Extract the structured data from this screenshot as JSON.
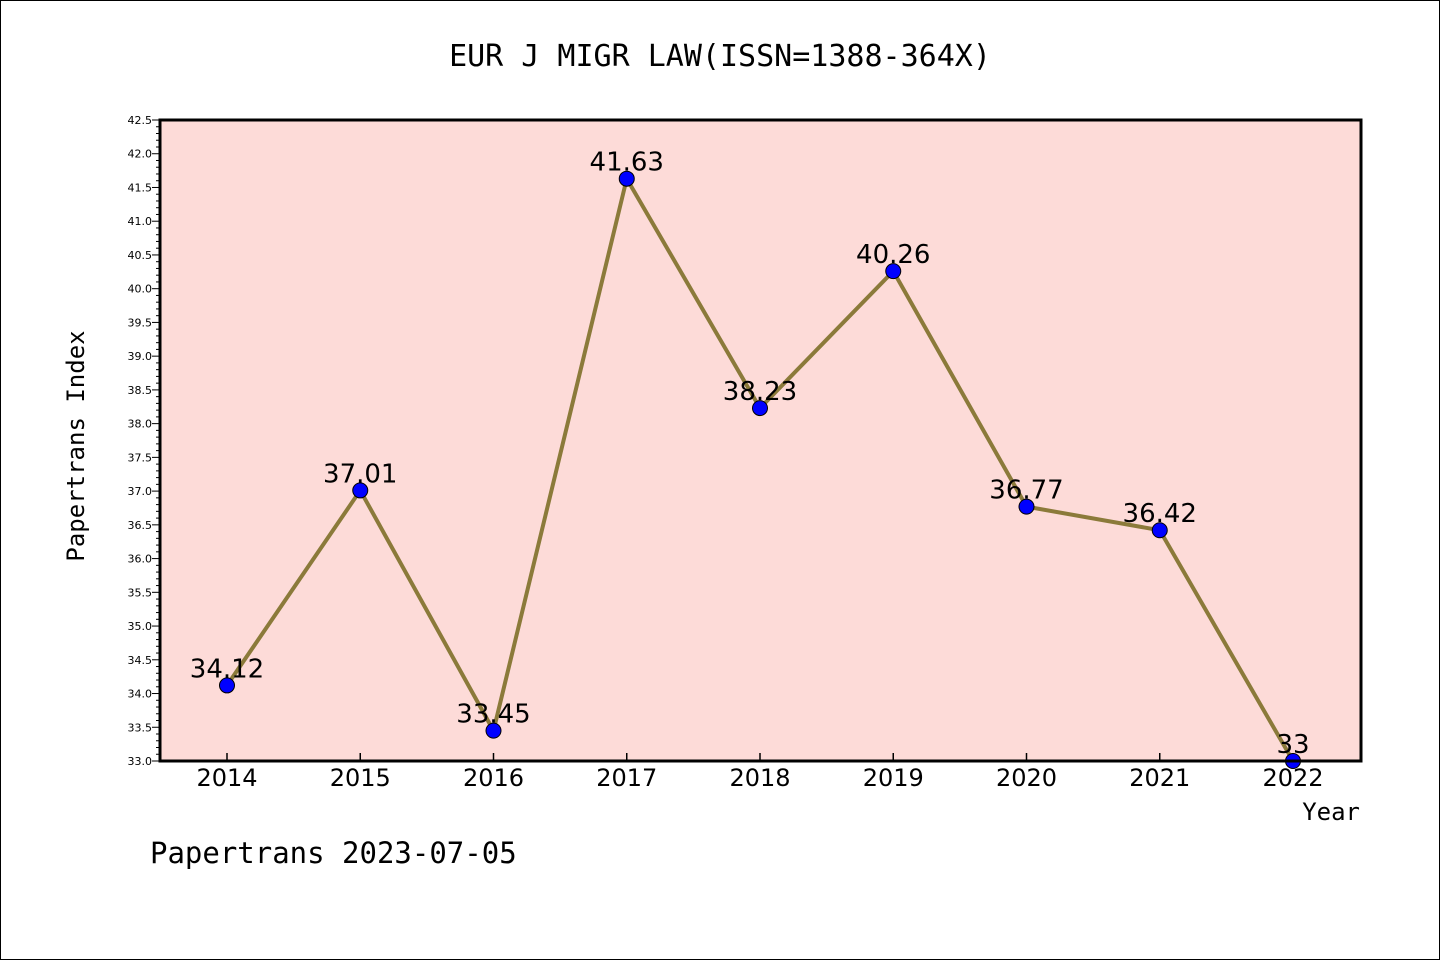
{
  "chart_data": {
    "type": "line",
    "title": "EUR J MIGR LAW(ISSN=1388-364X)",
    "xlabel": "Year",
    "ylabel": "Papertrans Index",
    "categories": [
      "2014",
      "2015",
      "2016",
      "2017",
      "2018",
      "2019",
      "2020",
      "2021",
      "2022"
    ],
    "series": [
      {
        "values": [
          34.12,
          37.01,
          33.45,
          41.63,
          38.23,
          40.26,
          36.77,
          36.42,
          33
        ],
        "labels": [
          "34.12",
          "37.01",
          "33.45",
          "41.63",
          "38.23",
          "40.26",
          "36.77",
          "36.42",
          "33"
        ]
      }
    ],
    "ylim": [
      33.0,
      42.5
    ],
    "yticks": [
      "33.0",
      "33.5",
      "34.0",
      "34.5",
      "35.0",
      "35.5",
      "36.0",
      "36.5",
      "37.0",
      "37.5",
      "38.0",
      "38.5",
      "39.0",
      "39.5",
      "40.0",
      "40.5",
      "41.0",
      "41.5",
      "42.0",
      "42.5"
    ],
    "grid": false,
    "legend": "none"
  },
  "footer": "Papertrans 2023-07-05",
  "colors": {
    "plot_background": "#fddbd8",
    "line": "#8b7a3a",
    "marker": "#0000ff"
  }
}
